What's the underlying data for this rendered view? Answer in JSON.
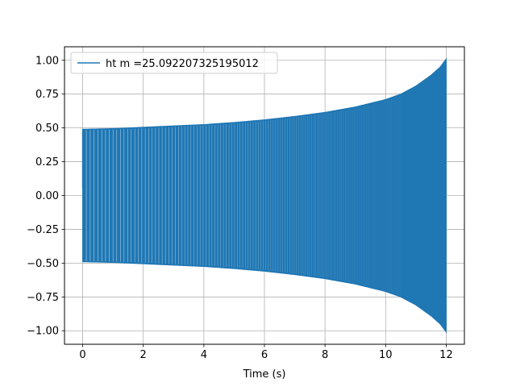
{
  "chart_data": {
    "type": "line",
    "title": "",
    "xlabel": "Time (s)",
    "ylabel": "",
    "xlim": [
      -0.6,
      12.6
    ],
    "ylim": [
      -1.1,
      1.1
    ],
    "xticks": [
      0,
      2,
      4,
      6,
      8,
      10,
      12
    ],
    "xtick_labels": [
      "0",
      "2",
      "4",
      "6",
      "8",
      "10",
      "12"
    ],
    "yticks": [
      -1.0,
      -0.75,
      -0.5,
      -0.25,
      0.0,
      0.25,
      0.5,
      0.75,
      1.0
    ],
    "ytick_labels": [
      "−1.00",
      "−0.75",
      "−0.50",
      "−0.25",
      "0.00",
      "0.25",
      "0.50",
      "0.75",
      "1.00"
    ],
    "grid": true,
    "legend_position": "top-left",
    "series": [
      {
        "name": "ht m =25.092207325195012",
        "color": "#1f77b4",
        "x_range": [
          0,
          12
        ],
        "envelope": {
          "x": [
            0,
            1,
            2,
            3,
            4,
            5,
            6,
            7,
            8,
            9,
            10,
            10.5,
            11,
            11.5,
            11.8,
            12
          ],
          "amplitude": [
            0.49,
            0.495,
            0.505,
            0.515,
            0.525,
            0.54,
            0.56,
            0.585,
            0.615,
            0.655,
            0.71,
            0.75,
            0.81,
            0.89,
            0.95,
            1.01
          ]
        },
        "start_value": 0.05
      }
    ]
  }
}
